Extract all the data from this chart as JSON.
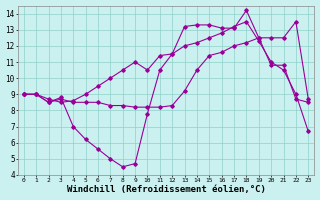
{
  "background_color": "#caf0f0",
  "grid_color": "#90d0c8",
  "line_color": "#990099",
  "xlabel": "Windchill (Refroidissement éolien,°C)",
  "xlabel_fontsize": 6.5,
  "ylim": [
    4,
    14.5
  ],
  "xlim": [
    -0.5,
    23.5
  ],
  "yticks": [
    4,
    5,
    6,
    7,
    8,
    9,
    10,
    11,
    12,
    13,
    14
  ],
  "xticks": [
    0,
    1,
    2,
    3,
    4,
    5,
    6,
    7,
    8,
    9,
    10,
    11,
    12,
    13,
    14,
    15,
    16,
    17,
    18,
    19,
    20,
    21,
    22,
    23
  ],
  "series1_x": [
    0,
    1,
    2,
    3,
    4,
    5,
    6,
    7,
    8,
    9,
    10,
    11,
    12,
    13,
    14,
    15,
    16,
    17,
    18,
    19,
    20,
    21,
    22,
    23
  ],
  "series1_y": [
    9,
    9,
    8.5,
    8.7,
    8.5,
    8.5,
    8.5,
    8.3,
    8.3,
    8.2,
    8.2,
    8.2,
    8.3,
    9.2,
    10.5,
    11.4,
    11.6,
    12.0,
    12.2,
    12.5,
    12.5,
    12.5,
    13.5,
    8.7
  ],
  "series2_x": [
    0,
    1,
    2,
    3,
    4,
    5,
    6,
    7,
    8,
    9,
    10,
    11,
    12,
    13,
    14,
    15,
    16,
    17,
    18,
    19,
    20,
    21,
    22,
    23
  ],
  "series2_y": [
    9,
    9,
    8.5,
    8.8,
    7.0,
    6.2,
    5.6,
    5.0,
    4.5,
    4.7,
    7.8,
    10.5,
    11.5,
    13.2,
    13.3,
    13.3,
    13.1,
    13.1,
    14.2,
    12.5,
    10.8,
    10.8,
    8.7,
    8.5
  ],
  "series3_x": [
    0,
    1,
    2,
    3,
    4,
    5,
    6,
    7,
    8,
    9,
    10,
    11,
    12,
    13,
    14,
    15,
    16,
    17,
    18,
    19,
    20,
    21,
    22,
    23
  ],
  "series3_y": [
    9,
    9,
    8.7,
    8.5,
    8.6,
    9.0,
    9.5,
    10.0,
    10.5,
    11.0,
    10.5,
    11.4,
    11.5,
    12.0,
    12.2,
    12.5,
    12.8,
    13.2,
    13.5,
    12.3,
    11.0,
    10.5,
    9.0,
    6.7
  ]
}
